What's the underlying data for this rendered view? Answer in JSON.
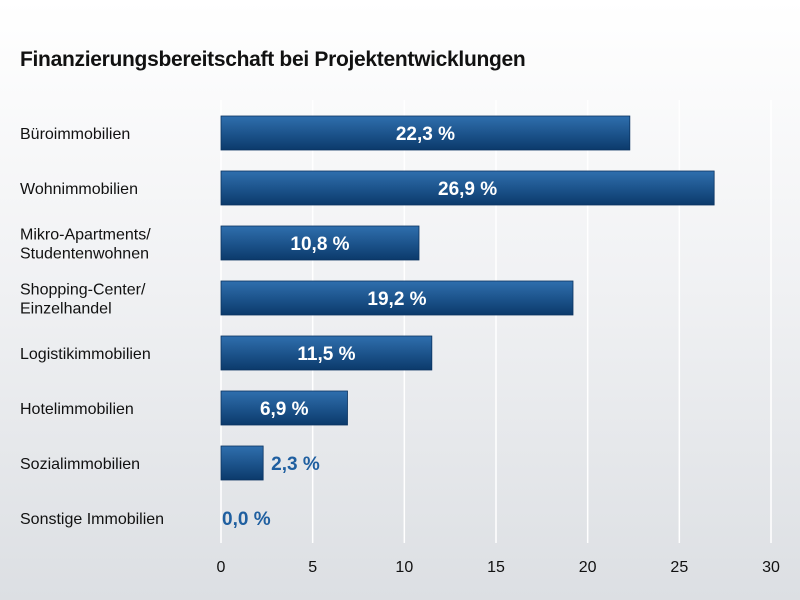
{
  "chart_data": {
    "type": "bar",
    "orientation": "horizontal",
    "title": "Finanzierungsbereitschaft bei Projektentwicklungen",
    "categories": [
      [
        "Büroimmobilien"
      ],
      [
        "Wohnimmobilien"
      ],
      [
        "Mikro-Apartments/",
        "Studentenwohnen"
      ],
      [
        "Shopping-Center/",
        "Einzelhandel"
      ],
      [
        "Logistikimmobilien"
      ],
      [
        "Hotelimmobilien"
      ],
      [
        "Sozialimmobilien"
      ],
      [
        "Sonstige Immobilien"
      ]
    ],
    "values": [
      22.3,
      26.9,
      10.8,
      19.2,
      11.5,
      6.9,
      2.3,
      0.0
    ],
    "value_labels": [
      "22,3 %",
      "26,9 %",
      "10,8 %",
      "19,2 %",
      "11,5 %",
      "6,9 %",
      "2,3 %",
      "0,0 %"
    ],
    "xlim": [
      0,
      30
    ],
    "xticks": [
      0,
      5,
      10,
      15,
      20,
      25,
      30
    ],
    "grid": true,
    "colors": {
      "bar_top": "#2f6fae",
      "bar_bottom": "#0b3a6b",
      "bar_stroke": "#0a3360",
      "label_outside": "#1f5fa0"
    }
  }
}
